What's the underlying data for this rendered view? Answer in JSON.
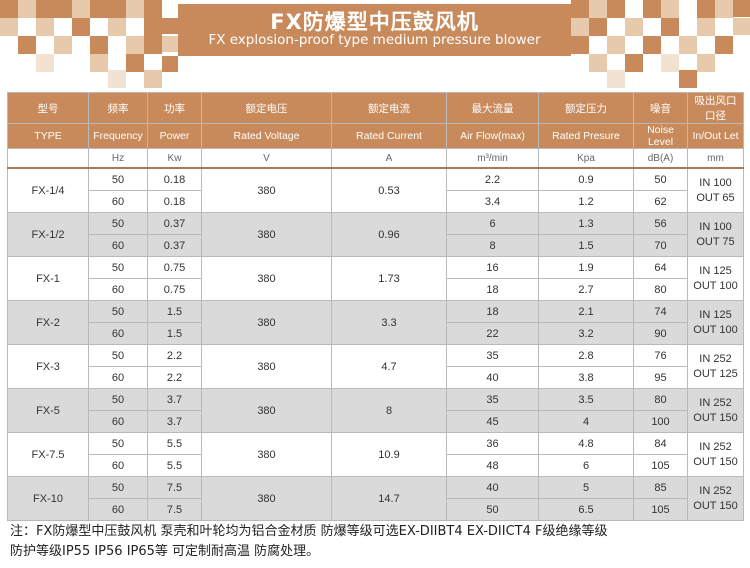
{
  "header": {
    "title_cn": "FX防爆型中压鼓风机",
    "title_en": "FX explosion-proof type medium pressure blower"
  },
  "colors": {
    "accent": "#c88a5b",
    "gray_row": "#dadada"
  },
  "table": {
    "header_cn": [
      "型号",
      "频率",
      "功率",
      "额定电压",
      "额定电流",
      "最大流量",
      "额定压力",
      "噪音",
      "吸出风口 口径"
    ],
    "header_en": [
      "TYPE",
      "Frequency",
      "Power",
      "Rated Voltage",
      "Rated Current",
      "Air Flow(max)",
      "Rated Presure",
      "Noise Level",
      "In/Out Let"
    ],
    "units": [
      "",
      "Hz",
      "Kw",
      "V",
      "A",
      "m³/min",
      "Kpa",
      "dB(A)",
      "mm"
    ],
    "models": [
      {
        "type": "FX-1/4",
        "voltage": "380",
        "current": "0.53",
        "in": "IN 100",
        "out": "OUT 65",
        "rows": [
          {
            "freq": "50",
            "power": "0.18",
            "flow": "2.2",
            "pressure": "0.9",
            "noise": "50"
          },
          {
            "freq": "60",
            "power": "0.18",
            "flow": "3.4",
            "pressure": "1.2",
            "noise": "62"
          }
        ]
      },
      {
        "type": "FX-1/2",
        "voltage": "380",
        "current": "0.96",
        "in": "IN 100",
        "out": "OUT 75",
        "rows": [
          {
            "freq": "50",
            "power": "0.37",
            "flow": "6",
            "pressure": "1.3",
            "noise": "56"
          },
          {
            "freq": "60",
            "power": "0.37",
            "flow": "8",
            "pressure": "1.5",
            "noise": "70"
          }
        ]
      },
      {
        "type": "FX-1",
        "voltage": "380",
        "current": "1.73",
        "in": "IN 125",
        "out": "OUT 100",
        "rows": [
          {
            "freq": "50",
            "power": "0.75",
            "flow": "16",
            "pressure": "1.9",
            "noise": "64"
          },
          {
            "freq": "60",
            "power": "0.75",
            "flow": "18",
            "pressure": "2.7",
            "noise": "80"
          }
        ]
      },
      {
        "type": "FX-2",
        "voltage": "380",
        "current": "3.3",
        "in": "IN 125",
        "out": "OUT 100",
        "rows": [
          {
            "freq": "50",
            "power": "1.5",
            "flow": "18",
            "pressure": "2.1",
            "noise": "74"
          },
          {
            "freq": "60",
            "power": "1.5",
            "flow": "22",
            "pressure": "3.2",
            "noise": "90"
          }
        ]
      },
      {
        "type": "FX-3",
        "voltage": "380",
        "current": "4.7",
        "in": "IN 252",
        "out": "OUT 125",
        "rows": [
          {
            "freq": "50",
            "power": "2.2",
            "flow": "35",
            "pressure": "2.8",
            "noise": "76"
          },
          {
            "freq": "60",
            "power": "2.2",
            "flow": "40",
            "pressure": "3.8",
            "noise": "95"
          }
        ]
      },
      {
        "type": "FX-5",
        "voltage": "380",
        "current": "8",
        "in": "IN 252",
        "out": "OUT 150",
        "rows": [
          {
            "freq": "50",
            "power": "3.7",
            "flow": "35",
            "pressure": "3.5",
            "noise": "80"
          },
          {
            "freq": "60",
            "power": "3.7",
            "flow": "45",
            "pressure": "4",
            "noise": "100"
          }
        ]
      },
      {
        "type": "FX-7.5",
        "voltage": "380",
        "current": "10.9",
        "in": "IN 252",
        "out": "OUT 150",
        "rows": [
          {
            "freq": "50",
            "power": "5.5",
            "flow": "36",
            "pressure": "4.8",
            "noise": "84"
          },
          {
            "freq": "60",
            "power": "5.5",
            "flow": "48",
            "pressure": "6",
            "noise": "105"
          }
        ]
      },
      {
        "type": "FX-10",
        "voltage": "380",
        "current": "14.7",
        "in": "IN 252",
        "out": "OUT 150",
        "rows": [
          {
            "freq": "50",
            "power": "7.5",
            "flow": "40",
            "pressure": "5",
            "noise": "85"
          },
          {
            "freq": "60",
            "power": "7.5",
            "flow": "50",
            "pressure": "6.5",
            "noise": "105"
          }
        ]
      }
    ]
  },
  "note": {
    "line1": "注：FX防爆型中压鼓风机 泵壳和叶轮均为铝合金材质 防爆等级可选EX-DIIBT4 EX-DIICT4  F级绝缘等级",
    "line2": "防护等级IP55 IP56  IP65等 可定制耐高温 防腐处理。"
  }
}
